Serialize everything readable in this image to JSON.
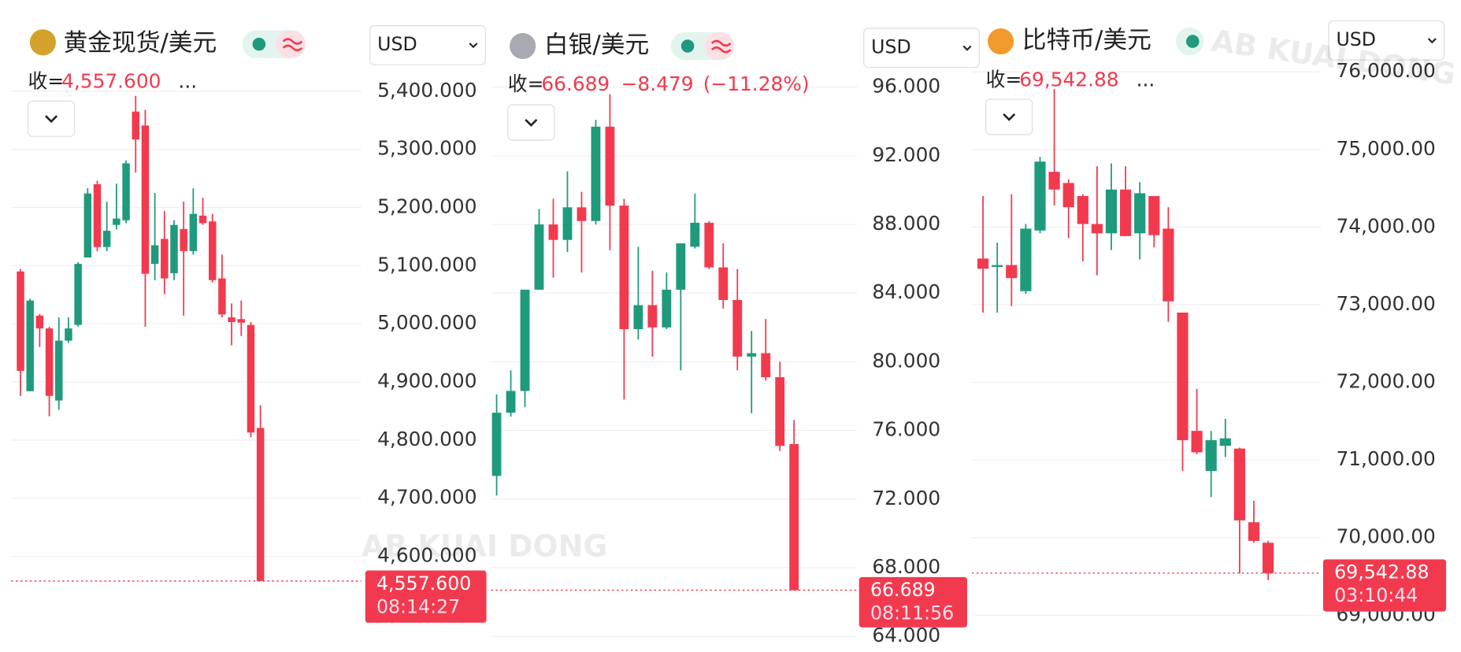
{
  "watermark": "AB KUAI DONG",
  "chart_data": [
    {
      "type": "candlestick",
      "title": "黄金现货/美元",
      "close_prefix": "收=",
      "price": {
        "value": 4557.6,
        "label": "4,557.600"
      },
      "more": "...",
      "currency": "USD",
      "countdown": "08:14:27",
      "colors": {
        "up": "#1f9a7c",
        "down": "#f23a4e"
      },
      "ylim": [
        4550,
        5460
      ],
      "yticks": [
        {
          "value": 4600,
          "label": "4,600.000"
        },
        {
          "value": 4700,
          "label": "4,700.000"
        },
        {
          "value": 4800,
          "label": "4,800.000"
        },
        {
          "value": 4900,
          "label": "4,900.000"
        },
        {
          "value": 5000,
          "label": "5,000.000"
        },
        {
          "value": 5100,
          "label": "5,100.000"
        },
        {
          "value": 5200,
          "label": "5,200.000"
        },
        {
          "value": 5300,
          "label": "5,300.000"
        },
        {
          "value": 5400,
          "label": "5,400.000"
        }
      ],
      "open": [
        5090,
        4884,
        5014,
        4992,
        4868,
        4971,
        4998,
        5114,
        5240,
        5132,
        5170,
        5178,
        5365,
        5341,
        5103,
        5146,
        5087,
        5163,
        5125,
        5186,
        5176,
        5078,
        5011,
        5008,
        4998,
        4821
      ],
      "high": [
        5094,
        5043,
        5017,
        4995,
        5011,
        5011,
        5106,
        5233,
        5246,
        5210,
        5241,
        5281,
        5392,
        5368,
        5225,
        5194,
        5178,
        5210,
        5233,
        5217,
        5189,
        5119,
        5035,
        5040,
        5003,
        4860
      ],
      "low": [
        4876,
        4884,
        4960,
        4841,
        4852,
        4967,
        4995,
        5114,
        5125,
        5125,
        5162,
        5173,
        5260,
        4995,
        5075,
        5051,
        5075,
        5014,
        5119,
        5170,
        5071,
        5011,
        4963,
        4979,
        4805,
        4557.6
      ],
      "close": [
        4919,
        5040,
        4992,
        4876,
        4971,
        4992,
        5103,
        5224,
        5132,
        5160,
        5181,
        5276,
        5317,
        5086,
        5135,
        5078,
        5170,
        5125,
        5189,
        5173,
        5075,
        5016,
        5003,
        5002,
        4813,
        4557.6
      ]
    },
    {
      "type": "candlestick",
      "title": "白银/美元",
      "close_prefix": "收=",
      "price": {
        "value": 66.689,
        "label": "66.689"
      },
      "change": {
        "value": -8.479,
        "label": "−8.479"
      },
      "change_pct": {
        "value": -11.28,
        "label": "(−11.28%)"
      },
      "currency": "USD",
      "countdown": "08:11:56",
      "colors": {
        "up": "#1f9a7c",
        "down": "#f23a4e"
      },
      "ylim": [
        63.6,
        97.8
      ],
      "yticks": [
        {
          "value": 64,
          "label": "64.000"
        },
        {
          "value": 68,
          "label": "68.000"
        },
        {
          "value": 72,
          "label": "72.000"
        },
        {
          "value": 76,
          "label": "76.000"
        },
        {
          "value": 80,
          "label": "80.000"
        },
        {
          "value": 84,
          "label": "84.000"
        },
        {
          "value": 88,
          "label": "88.000"
        },
        {
          "value": 92,
          "label": "92.000"
        },
        {
          "value": 96,
          "label": "96.000"
        }
      ],
      "open": [
        73.35,
        77.03,
        78.3,
        84.2,
        88.0,
        87.1,
        89.0,
        88.2,
        93.7,
        89.1,
        81.9,
        83.3,
        82.0,
        84.2,
        86.7,
        88.1,
        85.5,
        83.6,
        80.3,
        80.5,
        79.1,
        75.2
      ],
      "high": [
        78.1,
        79.5,
        84.2,
        88.9,
        89.5,
        91.1,
        89.9,
        94.1,
        95.6,
        89.5,
        86.7,
        85.3,
        85.2,
        86.9,
        89.8,
        88.2,
        86.9,
        85.4,
        81.8,
        82.5,
        80.0,
        76.6
      ],
      "low": [
        72.2,
        76.8,
        77.35,
        84.2,
        84.9,
        86.4,
        85.2,
        88.0,
        86.5,
        77.8,
        81.3,
        80.3,
        81.9,
        79.5,
        86.6,
        85.4,
        83.1,
        79.5,
        77.0,
        78.9,
        74.8,
        66.689
      ],
      "close": [
        77.03,
        78.3,
        84.2,
        88.0,
        87.1,
        89.0,
        88.2,
        93.7,
        89.1,
        81.9,
        83.3,
        82.0,
        84.2,
        86.9,
        88.1,
        85.5,
        83.6,
        80.3,
        80.5,
        79.1,
        75.1,
        66.689
      ]
    },
    {
      "type": "candlestick",
      "title": "比特币/美元",
      "close_prefix": "收=",
      "price": {
        "value": 69542.88,
        "label": "69,542.88"
      },
      "more": "...",
      "currency": "USD",
      "countdown": "03:10:44",
      "colors": {
        "up": "#1f9a7c",
        "down": "#f23a4e"
      },
      "ylim": [
        68640,
        76200
      ],
      "yticks": [
        {
          "value": 69000,
          "label": "69,000.00"
        },
        {
          "value": 70000,
          "label": "70,000.00"
        },
        {
          "value": 71000,
          "label": "71,000.00"
        },
        {
          "value": 72000,
          "label": "72,000.00"
        },
        {
          "value": 73000,
          "label": "73,000.00"
        },
        {
          "value": 74000,
          "label": "74,000.00"
        },
        {
          "value": 75000,
          "label": "75,000.00"
        },
        {
          "value": 76000,
          "label": "76,000.00"
        }
      ],
      "open": [
        73595,
        73487,
        73511,
        73175,
        73956,
        74712,
        74568,
        74400,
        74040,
        73920,
        74484,
        73920,
        74400,
        73980,
        72899,
        71375,
        70858,
        71183,
        71147,
        70198,
        69934
      ],
      "high": [
        74400,
        73800,
        74424,
        74040,
        74904,
        75780,
        74616,
        74424,
        74784,
        74820,
        74784,
        74580,
        74400,
        74256,
        72899,
        71915,
        71375,
        71531,
        71159,
        70474,
        69958
      ],
      "low": [
        72899,
        72899,
        72983,
        73139,
        73920,
        74280,
        73860,
        73559,
        73379,
        73703,
        73884,
        73583,
        73739,
        72779,
        70858,
        71075,
        70522,
        71038,
        69538,
        69934,
        69454
      ],
      "close": [
        73463,
        73511,
        73343,
        73980,
        74844,
        74484,
        74256,
        74040,
        73920,
        74484,
        73884,
        74436,
        73896,
        73043,
        71255,
        71099,
        71255,
        71279,
        70222,
        69958,
        69542.88
      ]
    }
  ]
}
